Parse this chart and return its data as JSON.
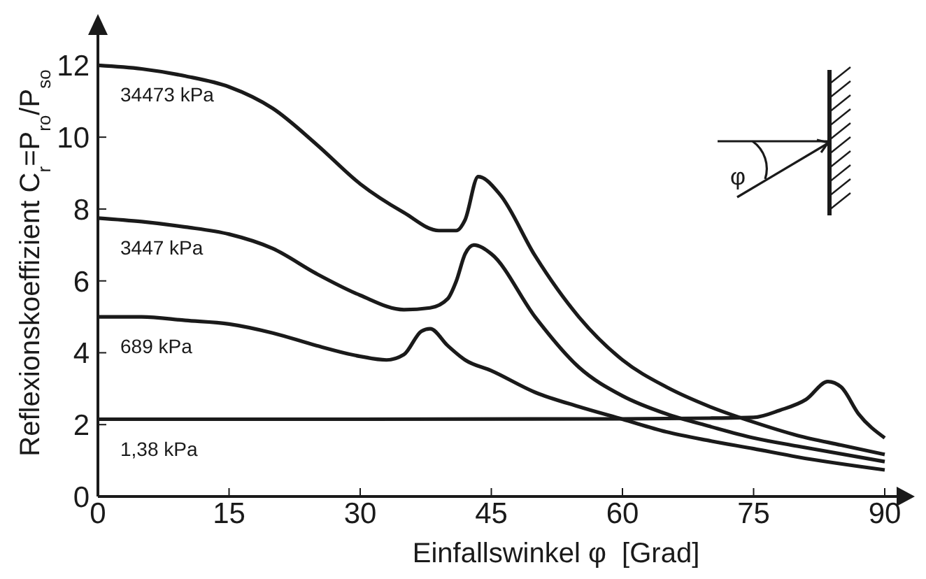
{
  "chart_data": {
    "type": "line",
    "xlabel": "Einfallswinkel φ  [Grad]",
    "ylabel": "Reflexionskoeffizient C$_{r}$=P$_{ro}$/P$_{so}$",
    "xlim": [
      0,
      92
    ],
    "ylim": [
      0,
      13
    ],
    "xticks": [
      0,
      15,
      30,
      45,
      60,
      75,
      90
    ],
    "yticks": [
      0,
      2,
      4,
      6,
      8,
      10,
      12
    ],
    "marker": "none",
    "line_style": "solid",
    "annotations": [
      "φ"
    ],
    "series": [
      {
        "name": "34473 kPa",
        "color": "#1a1a1a",
        "x": [
          0,
          5,
          10,
          15,
          20,
          25,
          30,
          35,
          39,
          41,
          42,
          43.5,
          46,
          50,
          55,
          60,
          65,
          70,
          75,
          80,
          85,
          90
        ],
        "values": [
          12,
          11.9,
          11.7,
          11.4,
          10.8,
          9.8,
          8.7,
          7.9,
          7.4,
          7.4,
          7.7,
          8.9,
          8.4,
          6.7,
          5.0,
          3.8,
          3.05,
          2.5,
          2.07,
          1.7,
          1.43,
          1.17
        ]
      },
      {
        "name": "3447 kPa",
        "color": "#1a1a1a",
        "x": [
          0,
          5,
          10,
          15,
          20,
          25,
          30,
          35,
          38,
          40,
          41,
          42,
          43,
          45,
          50,
          55,
          60,
          65,
          70,
          75,
          80,
          90
        ],
        "values": [
          7.75,
          7.65,
          7.5,
          7.3,
          6.9,
          6.2,
          5.6,
          5.2,
          5.25,
          5.5,
          6.0,
          6.75,
          7.0,
          6.75,
          5.0,
          3.6,
          2.8,
          2.3,
          1.95,
          1.63,
          1.4,
          0.97
        ]
      },
      {
        "name": "689 kPa",
        "color": "#1a1a1a",
        "x": [
          0,
          5,
          10,
          15,
          20,
          25,
          30,
          33,
          35,
          37,
          38,
          40,
          42,
          45,
          50,
          55,
          60,
          65,
          70,
          75,
          80,
          90
        ],
        "values": [
          5.0,
          5.0,
          4.9,
          4.8,
          4.55,
          4.2,
          3.9,
          3.8,
          3.95,
          4.6,
          4.67,
          4.2,
          3.8,
          3.5,
          2.9,
          2.5,
          2.15,
          1.8,
          1.55,
          1.33,
          1.1,
          0.74
        ]
      },
      {
        "name": "1,38 kPa",
        "color": "#1a1a1a",
        "x": [
          0,
          30,
          60,
          70,
          75,
          78,
          81,
          83.5,
          85,
          87,
          90
        ],
        "values": [
          2.15,
          2.15,
          2.16,
          2.18,
          2.2,
          2.4,
          2.7,
          3.2,
          3.05,
          2.3,
          1.63
        ]
      }
    ]
  }
}
